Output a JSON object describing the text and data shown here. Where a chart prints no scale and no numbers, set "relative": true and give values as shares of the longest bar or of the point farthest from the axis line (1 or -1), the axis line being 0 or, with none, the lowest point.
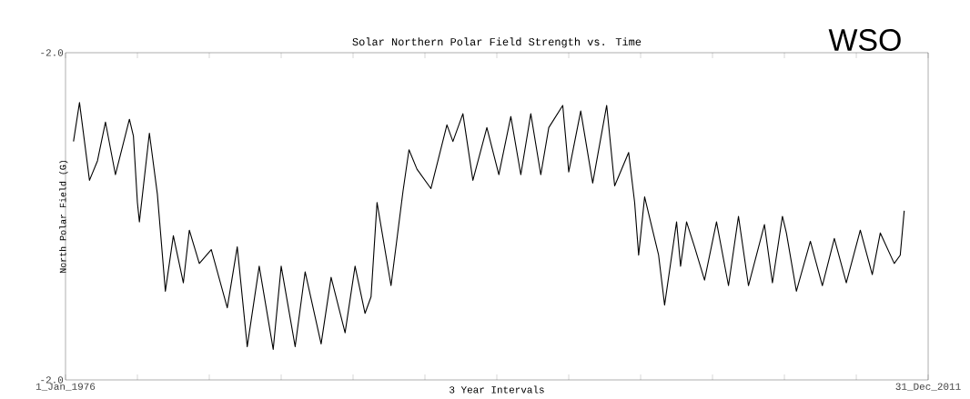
{
  "chart_data": {
    "type": "line",
    "relative": true,
    "title": "Solar Northern Polar Field Strength vs. Time",
    "xlabel": "3 Year Intervals",
    "ylabel": "North Polar Field (G)",
    "annotations": [
      "WSO",
      "-2.0",
      "-2.0"
    ],
    "xlim": [
      "1976-01-01",
      "2011-12-31"
    ],
    "xticks": [
      {
        "value": "1976-01-01",
        "label": "1_Jan_1976"
      },
      {
        "value": "1979-01-01",
        "label": null
      },
      {
        "value": "1982-01-01",
        "label": null
      },
      {
        "value": "1985-01-01",
        "label": null
      },
      {
        "value": "1988-01-01",
        "label": null
      },
      {
        "value": "1991-01-01",
        "label": null
      },
      {
        "value": "1994-01-01",
        "label": null
      },
      {
        "value": "1997-01-01",
        "label": null
      },
      {
        "value": "2000-01-01",
        "label": null
      },
      {
        "value": "2003-01-01",
        "label": null
      },
      {
        "value": "2006-01-01",
        "label": null
      },
      {
        "value": "2009-01-01",
        "label": null
      },
      {
        "value": "2011-12-31",
        "label": "31_Dec_2011"
      }
    ],
    "series": [
      {
        "color": "#000000",
        "x": [
          "1976-05",
          "1976-08",
          "1977-01",
          "1977-05",
          "1977-09",
          "1978-02",
          "1978-09",
          "1978-11",
          "1979-01",
          "1979-02",
          "1979-07",
          "1979-11",
          "1980-03",
          "1980-07",
          "1980-12",
          "1981-03",
          "1981-08",
          "1982-02",
          "1982-10",
          "1983-03",
          "1983-08",
          "1984-02",
          "1984-09",
          "1985-01",
          "1985-08",
          "1986-01",
          "1986-09",
          "1987-02",
          "1987-09",
          "1988-02",
          "1988-07",
          "1988-10",
          "1989-01",
          "1989-08",
          "1990-02",
          "1990-05",
          "1990-09",
          "1991-04",
          "1991-12",
          "1992-03",
          "1992-08",
          "1993-01",
          "1993-08",
          "1994-02",
          "1994-08",
          "1995-01",
          "1995-06",
          "1995-11",
          "1996-03",
          "1996-10",
          "1997-01",
          "1997-07",
          "1998-01",
          "1998-08",
          "1998-12",
          "1999-07",
          "1999-10",
          "1999-12",
          "2000-03",
          "2000-10",
          "2001-01",
          "2001-07",
          "2001-09",
          "2001-12",
          "2002-04",
          "2002-09",
          "2003-03",
          "2003-09",
          "2004-02",
          "2004-07",
          "2005-03",
          "2005-07",
          "2005-12",
          "2006-02",
          "2006-07",
          "2007-02",
          "2007-08",
          "2008-02",
          "2008-08",
          "2009-03",
          "2009-09",
          "2010-01",
          "2010-08",
          "2010-11",
          "2011-01"
        ],
        "values": [
          0.86,
          1.0,
          0.72,
          0.79,
          0.93,
          0.74,
          0.94,
          0.88,
          0.64,
          0.57,
          0.89,
          0.67,
          0.32,
          0.52,
          0.35,
          0.54,
          0.42,
          0.47,
          0.26,
          0.48,
          0.12,
          0.41,
          0.11,
          0.41,
          0.12,
          0.39,
          0.13,
          0.37,
          0.17,
          0.41,
          0.24,
          0.3,
          0.64,
          0.34,
          0.68,
          0.83,
          0.76,
          0.69,
          0.92,
          0.86,
          0.96,
          0.72,
          0.91,
          0.74,
          0.95,
          0.74,
          0.96,
          0.74,
          0.91,
          0.99,
          0.75,
          0.97,
          0.71,
          0.99,
          0.7,
          0.82,
          0.64,
          0.45,
          0.66,
          0.45,
          0.27,
          0.57,
          0.41,
          0.57,
          0.48,
          0.36,
          0.57,
          0.34,
          0.59,
          0.34,
          0.56,
          0.35,
          0.59,
          0.53,
          0.32,
          0.5,
          0.34,
          0.51,
          0.35,
          0.54,
          0.38,
          0.53,
          0.42,
          0.45,
          0.61
        ]
      }
    ]
  }
}
